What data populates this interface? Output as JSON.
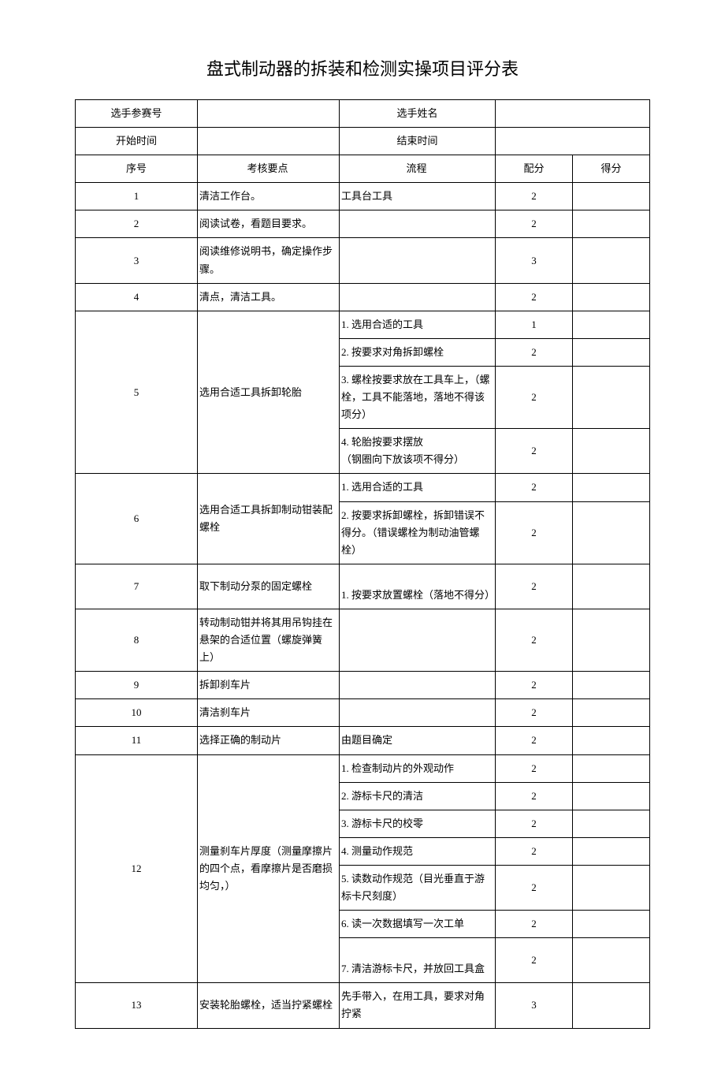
{
  "title": "盘式制动器的拆装和检测实操项目评分表",
  "info": {
    "contestant_no_label": "选手参赛号",
    "name_label": "选手姓名",
    "start_label": "开始时间",
    "end_label": "结束时间"
  },
  "headers": {
    "seq": "序号",
    "point": "考核要点",
    "flow": "流程",
    "score": "配分",
    "got": "得分"
  },
  "rows": [
    {
      "seq": "1",
      "point": "清洁工作台。",
      "flows": [
        {
          "t": "工具台工具",
          "s": "2"
        }
      ]
    },
    {
      "seq": "2",
      "point": "阅读试卷，看题目要求。",
      "flows": [
        {
          "t": "",
          "s": "2"
        }
      ]
    },
    {
      "seq": "3",
      "point": "阅读维修说明书，确定操作步骤。",
      "flows": [
        {
          "t": "",
          "s": "3"
        }
      ]
    },
    {
      "seq": "4",
      "point": "清点，清洁工具。",
      "flows": [
        {
          "t": "",
          "s": "2"
        }
      ]
    },
    {
      "seq": "5",
      "point": "选用合适工具拆卸轮胎",
      "flows": [
        {
          "t": "1. 选用合适的工具",
          "s": "1"
        },
        {
          "t": "2. 按要求对角拆卸螺栓",
          "s": "2"
        },
        {
          "t": "3. 螺栓按要求放在工具车上，（螺栓，工具不能落地，落地不得该项分）",
          "s": "2"
        },
        {
          "t": "4. 轮胎按要求摆放\n（钢圈向下放该项不得分）",
          "s": "2"
        }
      ]
    },
    {
      "seq": "6",
      "point": "选用合适工具拆卸制动钳装配螺栓",
      "flows": [
        {
          "t": "1. 选用合适的工具",
          "s": "2"
        },
        {
          "t": "2. 按要求拆卸螺栓，拆卸错误不得分。（错误螺栓为制动油管螺栓）",
          "s": "2"
        }
      ]
    },
    {
      "seq": "7",
      "point": "取下制动分泵的固定螺栓",
      "flows": [
        {
          "t": "\n1. 按要求放置螺栓（落地不得分）",
          "s": "2"
        }
      ]
    },
    {
      "seq": "8",
      "point": "转动制动钳并将其用吊钩挂在悬架的合适位置（螺旋弹簧上）",
      "flows": [
        {
          "t": "",
          "s": "2"
        }
      ]
    },
    {
      "seq": "9",
      "point": "拆卸刹车片",
      "flows": [
        {
          "t": "",
          "s": "2"
        }
      ]
    },
    {
      "seq": "10",
      "point": "清洁刹车片",
      "flows": [
        {
          "t": "",
          "s": "2"
        }
      ]
    },
    {
      "seq": "11",
      "point": "选择正确的制动片",
      "flows": [
        {
          "t": "由题目确定",
          "s": "2"
        }
      ]
    },
    {
      "seq": "12",
      "point": "测量刹车片厚度（测量摩擦片的四个点，看摩擦片是否磨损均匀，）",
      "flows": [
        {
          "t": "1. 检查制动片的外观动作",
          "s": "2"
        },
        {
          "t": "2. 游标卡尺的清洁",
          "s": "2"
        },
        {
          "t": "3. 游标卡尺的校零",
          "s": "2"
        },
        {
          "t": "4. 测量动作规范",
          "s": "2"
        },
        {
          "t": "5. 读数动作规范（目光垂直于游标卡尺刻度）",
          "s": "2"
        },
        {
          "t": "6. 读一次数据填写一次工单",
          "s": "2"
        },
        {
          "t": "\n7. 清洁游标卡尺，并放回工具盒",
          "s": "2"
        }
      ]
    },
    {
      "seq": "13",
      "point": "安装轮胎螺栓，适当拧紧螺栓",
      "flows": [
        {
          "t": "先手带入，在用工具，要求对角拧紧",
          "s": "3"
        }
      ]
    }
  ]
}
